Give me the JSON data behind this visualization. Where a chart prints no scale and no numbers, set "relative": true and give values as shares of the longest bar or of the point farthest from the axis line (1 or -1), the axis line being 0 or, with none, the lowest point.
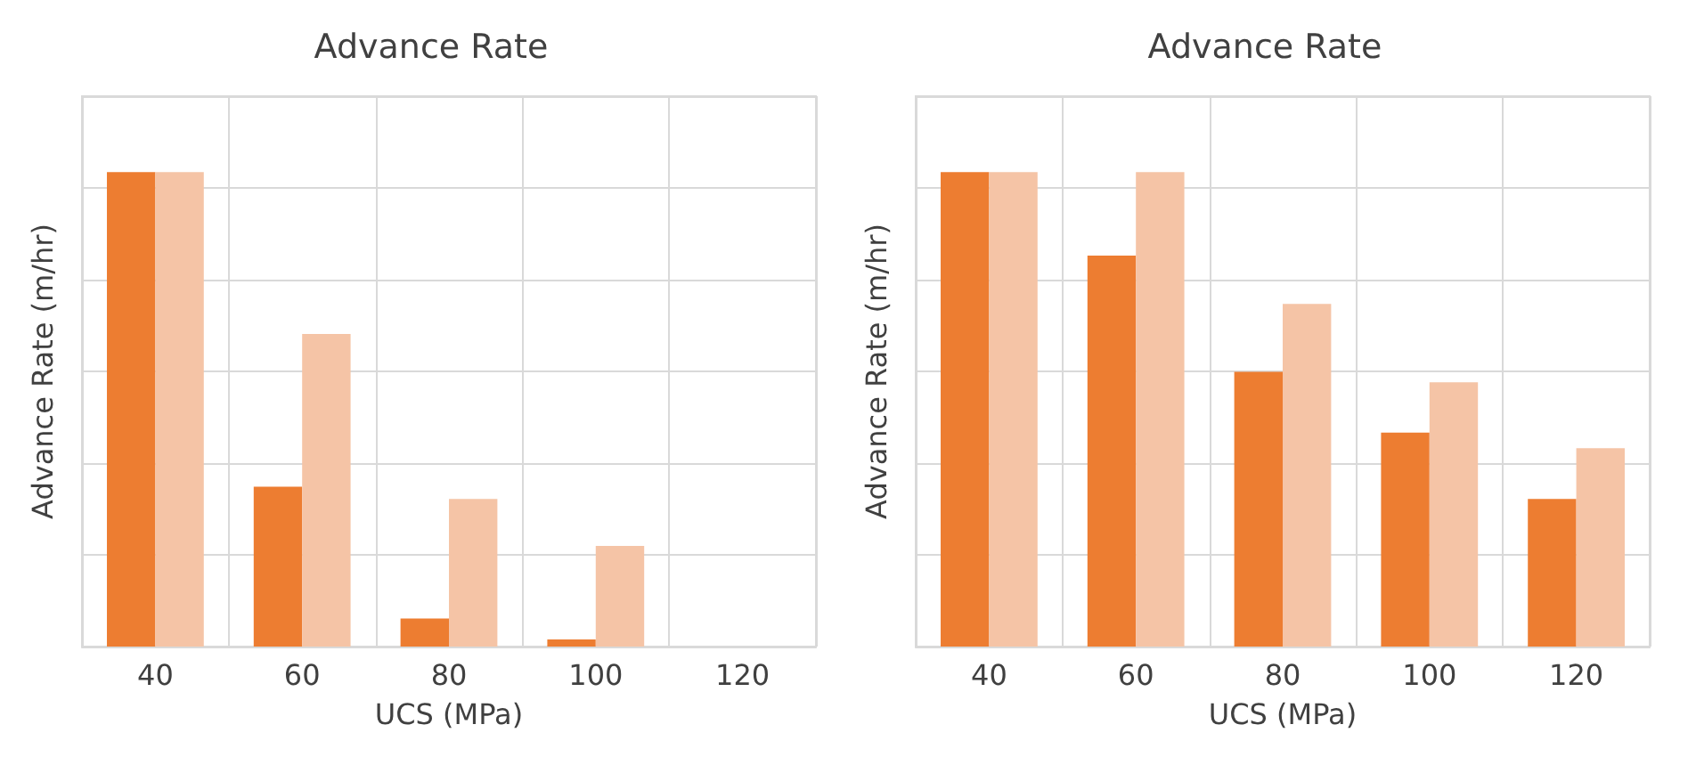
{
  "chart_data": [
    {
      "type": "bar",
      "title": "Advance Rate",
      "xlabel": "UCS (MPa)",
      "ylabel": "Advance Rate (m/hr)",
      "relative": true,
      "grid": true,
      "tick_labels": "x",
      "categories": [
        "40",
        "60",
        "80",
        "100",
        "120"
      ],
      "series": [
        {
          "color": "#ed7d31",
          "values": [
            1,
            0.337,
            0.059,
            0.015,
            0
          ]
        },
        {
          "color": "#f5c4a6",
          "values": [
            1,
            0.659,
            0.311,
            0.212,
            0
          ]
        }
      ]
    },
    {
      "type": "bar",
      "title": "Advance Rate",
      "xlabel": "UCS (MPa)",
      "ylabel": "Advance Rate (m/hr)",
      "relative": true,
      "grid": true,
      "tick_labels": "x",
      "categories": [
        "40",
        "60",
        "80",
        "100",
        "120"
      ],
      "series": [
        {
          "color": "#ed7d31",
          "values": [
            1,
            0.824,
            0.579,
            0.451,
            0.311
          ]
        },
        {
          "color": "#f5c4a6",
          "values": [
            1,
            1,
            0.722,
            0.557,
            0.418
          ]
        }
      ]
    }
  ]
}
